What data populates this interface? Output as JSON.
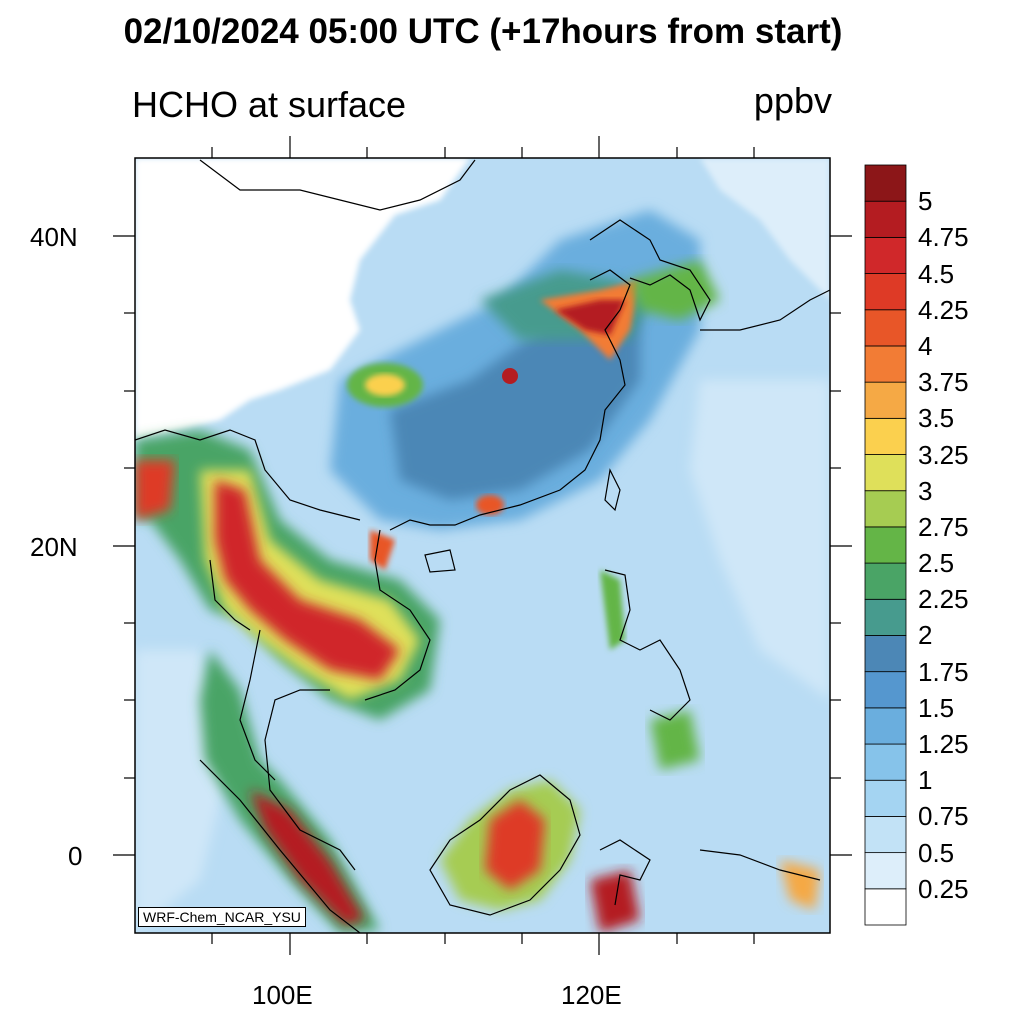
{
  "title": "02/10/2024 05:00 UTC (+17hours from start)",
  "variable_label": "HCHO at surface",
  "units": "ppbv",
  "credit": "WRF-Chem_NCAR_YSU",
  "lat_labels": [
    "40N",
    "20N",
    "0"
  ],
  "lon_labels": [
    "100E",
    "120E"
  ],
  "colorbar": {
    "levels": [
      "0.25",
      "0.5",
      "0.75",
      "1",
      "1.25",
      "1.5",
      "1.75",
      "2",
      "2.25",
      "2.5",
      "2.75",
      "3",
      "3.25",
      "3.5",
      "3.75",
      "4",
      "4.25",
      "4.5",
      "4.75",
      "5"
    ],
    "colors": [
      "#ffffff",
      "#ddeefa",
      "#c2e2f6",
      "#a4d4f2",
      "#86c3ea",
      "#6aaede",
      "#5597cf",
      "#4c87b6",
      "#479b8e",
      "#4aa466",
      "#64b547",
      "#a6cc52",
      "#dfe05a",
      "#fbd04e",
      "#f5a945",
      "#f27c35",
      "#e85628",
      "#de3a26",
      "#d0282a",
      "#b41c21",
      "#8c1618"
    ]
  },
  "map": {
    "lon_range": [
      90,
      135
    ],
    "lat_range": [
      -5,
      45
    ]
  }
}
